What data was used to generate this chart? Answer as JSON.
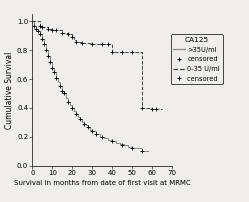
{
  "title": "",
  "xlabel": "Survival in months from date of first visit at MRMC",
  "ylabel": "Cumulative Survival",
  "xlim": [
    0,
    70
  ],
  "ylim": [
    0.0,
    1.05
  ],
  "yticks": [
    0.0,
    0.2,
    0.4,
    0.6,
    0.8,
    1.0
  ],
  "xticks": [
    0,
    10,
    20,
    30,
    40,
    50,
    60,
    70
  ],
  "background_color": "#f0eeea",
  "high_group": {
    "label": ">35U/ml",
    "color": "#888888",
    "linestyle": "-",
    "times": [
      0,
      1,
      2,
      3,
      4,
      5,
      6,
      7,
      8,
      9,
      10,
      11,
      12,
      13,
      14,
      15,
      16,
      17,
      18,
      19,
      20,
      21,
      22,
      23,
      24,
      25,
      26,
      27,
      28,
      29,
      30,
      32,
      34,
      36,
      38,
      40,
      42,
      44,
      46,
      48,
      50,
      55,
      58
    ],
    "survival": [
      1.0,
      0.97,
      0.95,
      0.93,
      0.91,
      0.88,
      0.84,
      0.8,
      0.76,
      0.72,
      0.68,
      0.65,
      0.61,
      0.58,
      0.55,
      0.52,
      0.5,
      0.47,
      0.44,
      0.42,
      0.4,
      0.38,
      0.36,
      0.34,
      0.32,
      0.3,
      0.29,
      0.28,
      0.27,
      0.25,
      0.24,
      0.22,
      0.2,
      0.19,
      0.18,
      0.17,
      0.16,
      0.15,
      0.14,
      0.13,
      0.12,
      0.1,
      0.1
    ],
    "censored_times": [
      1,
      2,
      3,
      4,
      5,
      6,
      7,
      8,
      9,
      10,
      11,
      12,
      14,
      15,
      16,
      18,
      20,
      22,
      24,
      26,
      28,
      30,
      32,
      35,
      40,
      45,
      50,
      55
    ],
    "censored_surv": [
      0.97,
      0.95,
      0.93,
      0.91,
      0.88,
      0.84,
      0.8,
      0.76,
      0.72,
      0.68,
      0.65,
      0.61,
      0.55,
      0.52,
      0.5,
      0.44,
      0.4,
      0.36,
      0.32,
      0.29,
      0.27,
      0.24,
      0.22,
      0.2,
      0.17,
      0.14,
      0.12,
      0.1
    ]
  },
  "low_group": {
    "label": "0-35 U/ml",
    "color": "#444444",
    "linestyle": "--",
    "times": [
      0,
      4,
      5,
      8,
      10,
      15,
      18,
      20,
      21,
      22,
      25,
      30,
      35,
      40,
      45,
      50,
      51,
      55,
      60,
      65
    ],
    "survival": [
      1.0,
      0.97,
      0.96,
      0.95,
      0.94,
      0.92,
      0.91,
      0.89,
      0.87,
      0.86,
      0.85,
      0.84,
      0.84,
      0.79,
      0.79,
      0.79,
      0.79,
      0.4,
      0.39,
      0.39
    ],
    "censored_times": [
      4,
      5,
      8,
      10,
      12,
      15,
      18,
      20,
      22,
      25,
      30,
      35,
      38,
      40,
      45,
      50,
      55,
      60,
      62
    ],
    "censored_surv": [
      0.97,
      0.96,
      0.95,
      0.94,
      0.94,
      0.92,
      0.91,
      0.89,
      0.86,
      0.85,
      0.84,
      0.84,
      0.84,
      0.79,
      0.79,
      0.79,
      0.4,
      0.39,
      0.39
    ]
  },
  "legend_title": "CA125",
  "xlabel_fontsize": 5.0,
  "ylabel_fontsize": 5.5,
  "tick_fontsize": 5.0,
  "legend_fontsize": 4.8
}
